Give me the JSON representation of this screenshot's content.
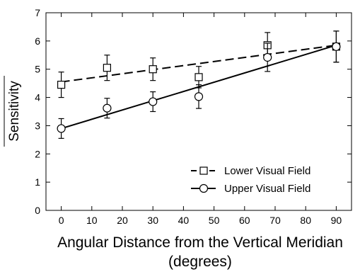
{
  "chart_data": {
    "type": "line",
    "xlabel_line1": "Angular Distance from the Vertical Meridian",
    "xlabel_line2": "(degrees)",
    "ylabel": "Sensitivity",
    "xlim": [
      -5,
      95
    ],
    "ylim": [
      0,
      7
    ],
    "xticks": [
      0,
      10,
      20,
      30,
      40,
      50,
      60,
      70,
      80,
      90
    ],
    "yticks": [
      0,
      1,
      2,
      3,
      4,
      5,
      6,
      7
    ],
    "grid": false,
    "legend_position": "bottom-right",
    "series": [
      {
        "name": "Lower Visual Field",
        "marker": "square",
        "line_style": "dashed",
        "x": [
          0,
          15,
          30,
          45,
          67.5,
          90
        ],
        "y": [
          4.45,
          5.05,
          5.0,
          4.72,
          5.85,
          5.8
        ],
        "err": [
          0.45,
          0.45,
          0.4,
          0.38,
          0.45,
          0.55
        ],
        "fit": [
          [
            0,
            4.55
          ],
          [
            90,
            5.85
          ]
        ]
      },
      {
        "name": "Upper Visual Field",
        "marker": "circle",
        "line_style": "solid",
        "x": [
          0,
          15,
          30,
          45,
          67.5,
          90
        ],
        "y": [
          2.9,
          3.62,
          3.85,
          4.03,
          5.42,
          5.8
        ],
        "err": [
          0.35,
          0.35,
          0.35,
          0.42,
          0.5,
          0.55
        ],
        "fit": [
          [
            0,
            2.9
          ],
          [
            90,
            5.85
          ]
        ]
      }
    ]
  }
}
